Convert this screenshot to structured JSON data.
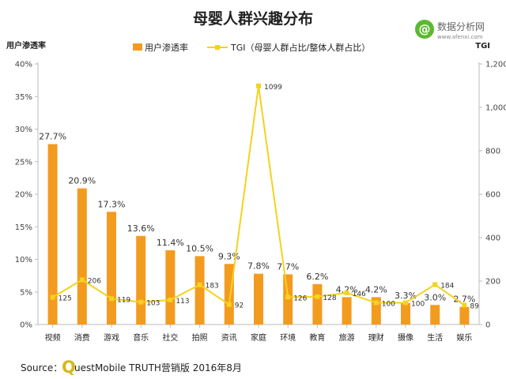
{
  "chart_data": {
    "type": "bar",
    "title": "母婴人群兴趣分布",
    "categories": [
      "视频",
      "消费",
      "游戏",
      "音乐",
      "社交",
      "拍照",
      "资讯",
      "家庭",
      "环境",
      "教育",
      "旅游",
      "理财",
      "摄像",
      "生活",
      "娱乐"
    ],
    "series": [
      {
        "name": "用户渗透率",
        "type": "bar",
        "axis": "left",
        "values": [
          27.7,
          20.9,
          17.3,
          13.6,
          11.4,
          10.5,
          9.3,
          7.8,
          7.7,
          6.2,
          4.2,
          4.2,
          3.3,
          3.0,
          2.7
        ],
        "labels": [
          "27.7%",
          "20.9%",
          "17.3%",
          "13.6%",
          "11.4%",
          "10.5%",
          "9.3%",
          "7.8%",
          "7.7%",
          "6.2%",
          "4.2%",
          "4.2%",
          "3.3%",
          "3.0%",
          "2.7%"
        ],
        "color": "#f39b1f"
      },
      {
        "name": "TGI（母婴人群占比/整体人群占比）",
        "type": "line",
        "axis": "right",
        "values": [
          125,
          206,
          119,
          103,
          113,
          183,
          92,
          1099,
          126,
          128,
          146,
          100,
          100,
          184,
          89
        ],
        "labels": [
          "125",
          "206",
          "119",
          "103",
          "113",
          "183",
          "92",
          "1099",
          "126",
          "128",
          "146",
          "100",
          "100",
          "184",
          "89"
        ],
        "color": "#f5d21c"
      }
    ],
    "ylabel": "用户渗透率",
    "y2label": "TGI",
    "ylim": [
      0,
      40
    ],
    "y2lim": [
      0,
      1200
    ],
    "yticks": [
      "0%",
      "5%",
      "10%",
      "15%",
      "20%",
      "25%",
      "30%",
      "35%",
      "40%"
    ],
    "y2ticks": [
      "0",
      "200",
      "400",
      "600",
      "800",
      "1,000",
      "1,200"
    ],
    "legend_position": "top",
    "grid": false,
    "source_label": "Source：",
    "source_logo_letter": "Q",
    "source_text": "uestMobile TRUTH营销版 2016年8月",
    "brand": {
      "name": "数据分析网",
      "url": "www.afenxi.com",
      "logo_letter": "@",
      "logo_color": "#5cb830"
    }
  }
}
